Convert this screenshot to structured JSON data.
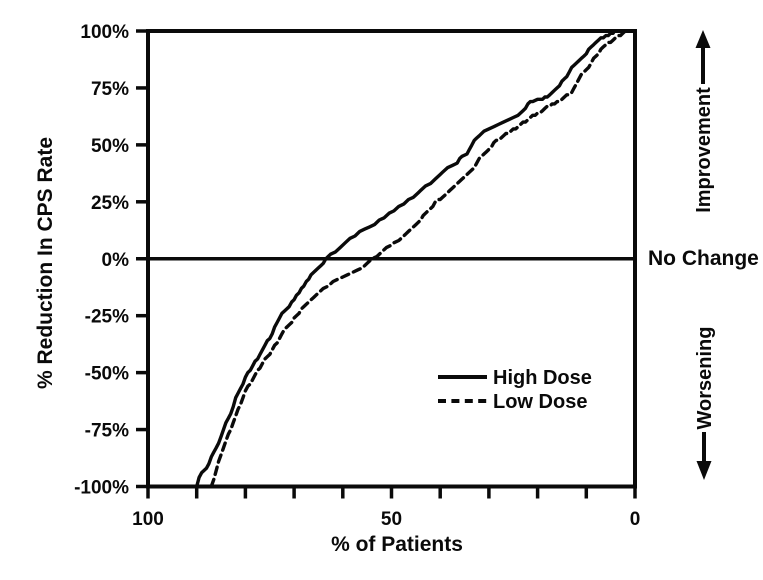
{
  "figure": {
    "background": "#ffffff",
    "ink": "#0a0a0a"
  },
  "chart_data": {
    "type": "line",
    "title": "",
    "xlabel": "% of Patients",
    "ylabel": "% Reduction In CPS Rate",
    "x_axis": {
      "min": 0,
      "max": 100,
      "reversed": true,
      "major_ticks": [
        {
          "value": 100,
          "label": "100"
        },
        {
          "value": 50,
          "label": "50"
        },
        {
          "value": 0,
          "label": "0"
        }
      ],
      "minor_tick_values": [
        100,
        90,
        80,
        70,
        60,
        50,
        40,
        30,
        20,
        10,
        0
      ]
    },
    "y_axis": {
      "min": -100,
      "max": 100,
      "ticks": [
        {
          "value": 100,
          "label": "100%"
        },
        {
          "value": 75,
          "label": "75%"
        },
        {
          "value": 50,
          "label": "50%"
        },
        {
          "value": 25,
          "label": "25%"
        },
        {
          "value": 0,
          "label": "0%"
        },
        {
          "value": -25,
          "label": "-25%"
        },
        {
          "value": -50,
          "label": "-50%"
        },
        {
          "value": -75,
          "label": "-75%"
        },
        {
          "value": -100,
          "label": "-100%"
        }
      ]
    },
    "reference_line": {
      "y": 0,
      "label": "No Change"
    },
    "annotations": {
      "up": "Improvement",
      "down": "Worsening"
    },
    "legend": [
      {
        "name": "High Dose",
        "style": "solid"
      },
      {
        "name": "Low Dose",
        "style": "dashed"
      }
    ],
    "series": [
      {
        "name": "High Dose",
        "style": "solid",
        "points": [
          [
            90,
            -100
          ],
          [
            89.5,
            -96
          ],
          [
            89,
            -94
          ],
          [
            88,
            -92
          ],
          [
            87.5,
            -90
          ],
          [
            87,
            -87
          ],
          [
            86.5,
            -85
          ],
          [
            86,
            -83
          ],
          [
            85.5,
            -81
          ],
          [
            85,
            -78
          ],
          [
            84.5,
            -75
          ],
          [
            84,
            -72
          ],
          [
            83.5,
            -70
          ],
          [
            83,
            -68
          ],
          [
            82.5,
            -65
          ],
          [
            82,
            -61
          ],
          [
            81.5,
            -59
          ],
          [
            81,
            -57
          ],
          [
            80.5,
            -55
          ],
          [
            80,
            -52
          ],
          [
            79.5,
            -50
          ],
          [
            79,
            -49
          ],
          [
            78.5,
            -47
          ],
          [
            78,
            -45
          ],
          [
            77.5,
            -44
          ],
          [
            77,
            -42
          ],
          [
            76.5,
            -40
          ],
          [
            76,
            -38
          ],
          [
            75.5,
            -36
          ],
          [
            75,
            -35
          ],
          [
            74.5,
            -33
          ],
          [
            74,
            -30
          ],
          [
            73.5,
            -28
          ],
          [
            73,
            -26
          ],
          [
            72.5,
            -24
          ],
          [
            72,
            -23
          ],
          [
            71.5,
            -22
          ],
          [
            71,
            -21
          ],
          [
            70.5,
            -19
          ],
          [
            70,
            -18
          ],
          [
            69.5,
            -16
          ],
          [
            69,
            -15
          ],
          [
            68.5,
            -13
          ],
          [
            68,
            -12
          ],
          [
            67.5,
            -10
          ],
          [
            67,
            -9
          ],
          [
            66.5,
            -7
          ],
          [
            66,
            -6
          ],
          [
            65.5,
            -5
          ],
          [
            65,
            -4
          ],
          [
            64.5,
            -3
          ],
          [
            64,
            -2
          ],
          [
            63.5,
            0
          ],
          [
            63,
            1
          ],
          [
            62.5,
            2
          ],
          [
            61.5,
            3
          ],
          [
            60.5,
            5
          ],
          [
            59.5,
            7
          ],
          [
            58.5,
            9
          ],
          [
            57.5,
            10
          ],
          [
            56.5,
            12
          ],
          [
            55.5,
            13
          ],
          [
            54.5,
            14
          ],
          [
            53.5,
            15
          ],
          [
            52.5,
            17
          ],
          [
            51.5,
            18
          ],
          [
            50.5,
            20
          ],
          [
            49.5,
            21
          ],
          [
            48.5,
            23
          ],
          [
            47.5,
            24
          ],
          [
            46.5,
            26
          ],
          [
            45.5,
            27
          ],
          [
            44.5,
            29
          ],
          [
            44,
            30
          ],
          [
            43,
            32
          ],
          [
            42,
            33
          ],
          [
            41,
            35
          ],
          [
            40,
            37
          ],
          [
            39.5,
            38
          ],
          [
            38.5,
            40
          ],
          [
            37.5,
            41
          ],
          [
            36.5,
            42
          ],
          [
            36,
            44
          ],
          [
            35.5,
            45
          ],
          [
            34.5,
            46
          ],
          [
            34,
            48
          ],
          [
            33.5,
            50
          ],
          [
            33,
            52
          ],
          [
            32.5,
            53
          ],
          [
            32,
            54
          ],
          [
            31,
            56
          ],
          [
            30,
            57
          ],
          [
            29,
            58
          ],
          [
            28,
            59
          ],
          [
            27,
            60
          ],
          [
            26,
            61
          ],
          [
            25,
            62
          ],
          [
            24,
            63
          ],
          [
            23,
            65
          ],
          [
            22.5,
            66
          ],
          [
            22,
            68
          ],
          [
            21.5,
            69
          ],
          [
            21,
            69
          ],
          [
            20,
            70
          ],
          [
            19,
            70
          ],
          [
            18.5,
            71
          ],
          [
            18,
            71
          ],
          [
            17.5,
            72
          ],
          [
            17,
            73
          ],
          [
            16.5,
            74
          ],
          [
            16,
            75
          ],
          [
            15.5,
            76
          ],
          [
            15,
            78
          ],
          [
            14.5,
            79
          ],
          [
            14,
            80
          ],
          [
            13.5,
            82
          ],
          [
            13,
            84
          ],
          [
            12.5,
            85
          ],
          [
            12,
            86
          ],
          [
            11.5,
            87
          ],
          [
            11,
            88
          ],
          [
            10.5,
            89
          ],
          [
            10,
            90
          ],
          [
            9.5,
            92
          ],
          [
            9,
            93
          ],
          [
            8.5,
            94
          ],
          [
            8,
            95
          ],
          [
            7.5,
            96
          ],
          [
            7,
            97
          ],
          [
            6.5,
            97
          ],
          [
            6,
            98
          ],
          [
            5.5,
            98
          ],
          [
            5,
            99
          ],
          [
            4.5,
            99
          ],
          [
            4.2,
            100
          ]
        ]
      },
      {
        "name": "Low Dose",
        "style": "dashed",
        "points": [
          [
            87,
            -100
          ],
          [
            86.5,
            -97
          ],
          [
            86,
            -93
          ],
          [
            85.5,
            -89
          ],
          [
            85,
            -86
          ],
          [
            84.5,
            -83
          ],
          [
            84,
            -80
          ],
          [
            83.5,
            -77
          ],
          [
            83,
            -75
          ],
          [
            82.5,
            -72
          ],
          [
            82,
            -69
          ],
          [
            81.5,
            -66
          ],
          [
            81,
            -64
          ],
          [
            80.5,
            -61
          ],
          [
            80,
            -58
          ],
          [
            79.5,
            -56
          ],
          [
            79,
            -55
          ],
          [
            78.5,
            -53
          ],
          [
            78,
            -51
          ],
          [
            77.5,
            -49
          ],
          [
            77,
            -48
          ],
          [
            76.5,
            -46
          ],
          [
            76,
            -44
          ],
          [
            75.5,
            -43
          ],
          [
            75,
            -42
          ],
          [
            74.5,
            -40
          ],
          [
            74,
            -38
          ],
          [
            73.5,
            -37
          ],
          [
            73,
            -35
          ],
          [
            72.5,
            -33
          ],
          [
            72,
            -31
          ],
          [
            71.5,
            -30
          ],
          [
            71,
            -29
          ],
          [
            70.5,
            -28
          ],
          [
            70,
            -26
          ],
          [
            69.5,
            -25
          ],
          [
            69,
            -24
          ],
          [
            68.5,
            -22
          ],
          [
            68,
            -21
          ],
          [
            67.5,
            -20
          ],
          [
            67,
            -19
          ],
          [
            66.5,
            -18
          ],
          [
            66,
            -17
          ],
          [
            65.5,
            -16
          ],
          [
            65,
            -15
          ],
          [
            64,
            -13
          ],
          [
            63,
            -12
          ],
          [
            62,
            -10
          ],
          [
            61,
            -9
          ],
          [
            60,
            -8
          ],
          [
            59,
            -7
          ],
          [
            58,
            -6
          ],
          [
            57,
            -5
          ],
          [
            56,
            -4
          ],
          [
            55,
            -2
          ],
          [
            54.5,
            -1
          ],
          [
            54,
            0
          ],
          [
            53,
            1
          ],
          [
            52,
            3
          ],
          [
            51.5,
            4
          ],
          [
            51,
            5
          ],
          [
            50,
            6
          ],
          [
            49.5,
            7
          ],
          [
            48.5,
            8
          ],
          [
            48,
            9
          ],
          [
            47.5,
            10
          ],
          [
            47,
            11
          ],
          [
            46.5,
            12
          ],
          [
            46,
            13
          ],
          [
            45.5,
            14
          ],
          [
            45,
            15
          ],
          [
            44.5,
            16
          ],
          [
            44,
            17
          ],
          [
            43.5,
            19
          ],
          [
            43,
            20
          ],
          [
            42.5,
            21
          ],
          [
            42,
            22
          ],
          [
            41.5,
            23
          ],
          [
            41,
            25
          ],
          [
            40.5,
            26
          ],
          [
            40,
            26
          ],
          [
            39.5,
            27
          ],
          [
            39,
            28
          ],
          [
            38.5,
            29
          ],
          [
            38,
            30
          ],
          [
            37.5,
            31
          ],
          [
            37,
            32
          ],
          [
            36.5,
            33
          ],
          [
            36,
            34
          ],
          [
            35.5,
            35
          ],
          [
            35,
            36
          ],
          [
            34.5,
            37
          ],
          [
            34,
            38
          ],
          [
            33.5,
            39
          ],
          [
            33,
            40
          ],
          [
            32.5,
            42
          ],
          [
            32,
            44
          ],
          [
            31.5,
            45
          ],
          [
            31,
            46
          ],
          [
            30.5,
            47
          ],
          [
            30,
            48
          ],
          [
            29.5,
            49
          ],
          [
            29,
            51
          ],
          [
            28.5,
            52
          ],
          [
            28,
            52
          ],
          [
            27.5,
            53
          ],
          [
            27,
            54
          ],
          [
            26.5,
            55
          ],
          [
            26,
            55
          ],
          [
            25.5,
            56
          ],
          [
            25,
            57
          ],
          [
            24.5,
            57
          ],
          [
            24,
            58
          ],
          [
            23.5,
            59
          ],
          [
            23,
            60
          ],
          [
            22.5,
            60
          ],
          [
            22,
            61
          ],
          [
            21.5,
            62
          ],
          [
            21,
            63
          ],
          [
            20.5,
            63
          ],
          [
            20,
            64
          ],
          [
            19.5,
            64
          ],
          [
            19,
            65
          ],
          [
            18.5,
            66
          ],
          [
            18,
            67
          ],
          [
            17.5,
            67
          ],
          [
            17,
            68
          ],
          [
            16.5,
            68
          ],
          [
            16,
            69
          ],
          [
            15.5,
            69
          ],
          [
            15,
            70
          ],
          [
            14.5,
            71
          ],
          [
            14,
            72
          ],
          [
            13.5,
            72
          ],
          [
            13,
            73
          ],
          [
            12.5,
            75
          ],
          [
            12,
            77
          ],
          [
            11.5,
            79
          ],
          [
            11,
            81
          ],
          [
            10.5,
            82
          ],
          [
            10,
            83
          ],
          [
            9.5,
            84
          ],
          [
            9,
            86
          ],
          [
            8.5,
            88
          ],
          [
            8,
            89
          ],
          [
            7.5,
            90
          ],
          [
            7,
            92
          ],
          [
            6.5,
            93
          ],
          [
            6,
            94
          ],
          [
            5.5,
            95
          ],
          [
            5,
            95
          ],
          [
            4.5,
            96
          ],
          [
            4,
            97
          ],
          [
            3.5,
            98
          ],
          [
            3,
            98
          ],
          [
            2.5,
            99
          ],
          [
            2,
            100
          ]
        ]
      }
    ]
  }
}
